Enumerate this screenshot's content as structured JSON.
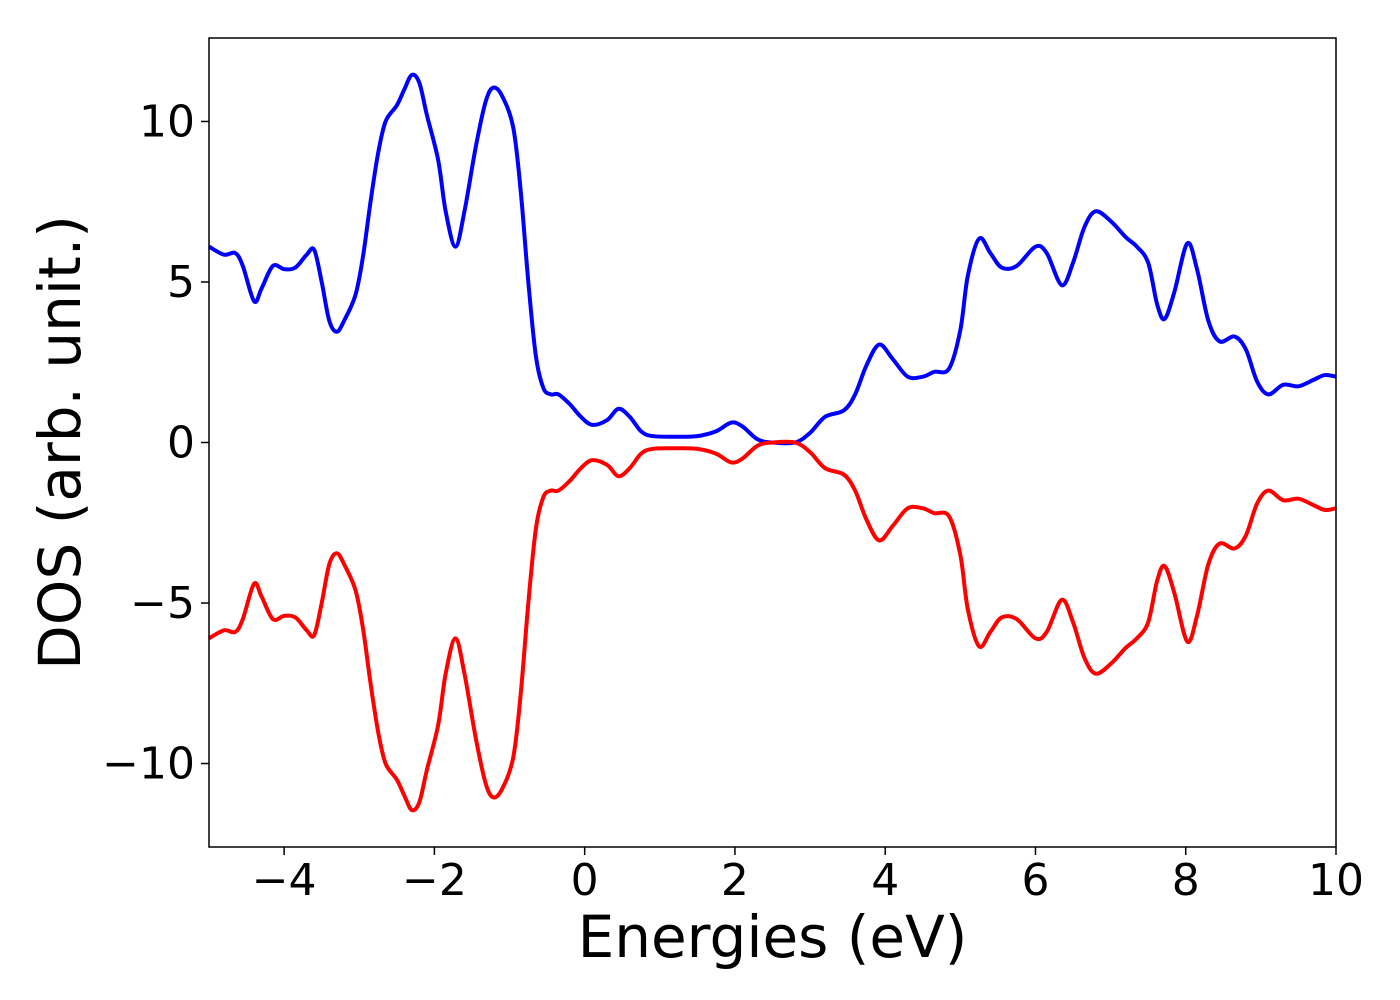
{
  "chart_data": {
    "type": "line",
    "title": "",
    "xlabel": "Energies (eV)",
    "ylabel": "DOS (arb. unit.)",
    "xlim": [
      -5,
      10
    ],
    "ylim": [
      -12.6,
      12.6
    ],
    "grid": false,
    "x_ticks": [
      -4,
      -2,
      0,
      2,
      4,
      6,
      8,
      10
    ],
    "x_tick_labels": [
      "−4",
      "−2",
      "0",
      "2",
      "4",
      "6",
      "8",
      "10"
    ],
    "y_ticks": [
      -10,
      -5,
      0,
      5,
      10
    ],
    "y_tick_labels": [
      "−10",
      "−5",
      "0",
      "5",
      "10"
    ],
    "series": [
      {
        "color": "#0000ff",
        "points": [
          [
            -5.0,
            6.1
          ],
          [
            -4.8,
            5.85
          ],
          [
            -4.65,
            5.9
          ],
          [
            -4.55,
            5.5
          ],
          [
            -4.4,
            4.4
          ],
          [
            -4.3,
            4.8
          ],
          [
            -4.15,
            5.5
          ],
          [
            -4.0,
            5.4
          ],
          [
            -3.85,
            5.45
          ],
          [
            -3.7,
            5.85
          ],
          [
            -3.6,
            6.0
          ],
          [
            -3.5,
            5.0
          ],
          [
            -3.4,
            3.8
          ],
          [
            -3.3,
            3.45
          ],
          [
            -3.2,
            3.8
          ],
          [
            -3.05,
            4.6
          ],
          [
            -2.95,
            5.8
          ],
          [
            -2.85,
            7.5
          ],
          [
            -2.75,
            9.0
          ],
          [
            -2.65,
            10.0
          ],
          [
            -2.5,
            10.5
          ],
          [
            -2.4,
            11.0
          ],
          [
            -2.3,
            11.45
          ],
          [
            -2.2,
            11.2
          ],
          [
            -2.1,
            10.2
          ],
          [
            -1.95,
            8.8
          ],
          [
            -1.85,
            7.2
          ],
          [
            -1.72,
            6.1
          ],
          [
            -1.6,
            7.2
          ],
          [
            -1.45,
            9.2
          ],
          [
            -1.32,
            10.6
          ],
          [
            -1.22,
            11.05
          ],
          [
            -1.1,
            10.8
          ],
          [
            -0.95,
            9.8
          ],
          [
            -0.85,
            7.8
          ],
          [
            -0.75,
            5.0
          ],
          [
            -0.65,
            2.7
          ],
          [
            -0.55,
            1.7
          ],
          [
            -0.45,
            1.5
          ],
          [
            -0.35,
            1.5
          ],
          [
            -0.2,
            1.2
          ],
          [
            -0.05,
            0.8
          ],
          [
            0.1,
            0.55
          ],
          [
            0.3,
            0.7
          ],
          [
            0.45,
            1.05
          ],
          [
            0.6,
            0.8
          ],
          [
            0.75,
            0.35
          ],
          [
            0.9,
            0.2
          ],
          [
            1.2,
            0.18
          ],
          [
            1.5,
            0.2
          ],
          [
            1.75,
            0.35
          ],
          [
            1.95,
            0.62
          ],
          [
            2.1,
            0.5
          ],
          [
            2.3,
            0.1
          ],
          [
            2.5,
            0.0
          ],
          [
            2.8,
            0.0
          ],
          [
            3.0,
            0.3
          ],
          [
            3.2,
            0.8
          ],
          [
            3.45,
            1.0
          ],
          [
            3.6,
            1.5
          ],
          [
            3.75,
            2.4
          ],
          [
            3.92,
            3.05
          ],
          [
            4.1,
            2.6
          ],
          [
            4.3,
            2.05
          ],
          [
            4.5,
            2.05
          ],
          [
            4.65,
            2.2
          ],
          [
            4.85,
            2.3
          ],
          [
            5.0,
            3.5
          ],
          [
            5.1,
            5.2
          ],
          [
            5.25,
            6.35
          ],
          [
            5.4,
            5.9
          ],
          [
            5.55,
            5.45
          ],
          [
            5.75,
            5.5
          ],
          [
            6.0,
            6.1
          ],
          [
            6.15,
            5.9
          ],
          [
            6.35,
            4.9
          ],
          [
            6.5,
            5.6
          ],
          [
            6.65,
            6.7
          ],
          [
            6.8,
            7.2
          ],
          [
            7.0,
            6.9
          ],
          [
            7.2,
            6.4
          ],
          [
            7.35,
            6.1
          ],
          [
            7.5,
            5.6
          ],
          [
            7.62,
            4.3
          ],
          [
            7.72,
            3.85
          ],
          [
            7.85,
            4.7
          ],
          [
            8.02,
            6.2
          ],
          [
            8.15,
            5.4
          ],
          [
            8.3,
            3.8
          ],
          [
            8.45,
            3.15
          ],
          [
            8.65,
            3.3
          ],
          [
            8.8,
            2.9
          ],
          [
            8.95,
            1.9
          ],
          [
            9.1,
            1.5
          ],
          [
            9.3,
            1.8
          ],
          [
            9.5,
            1.75
          ],
          [
            9.7,
            1.95
          ],
          [
            9.85,
            2.1
          ],
          [
            10.0,
            2.05
          ]
        ]
      },
      {
        "color": "#ff0000",
        "points": [
          [
            -5.0,
            -6.1
          ],
          [
            -4.8,
            -5.85
          ],
          [
            -4.65,
            -5.9
          ],
          [
            -4.55,
            -5.5
          ],
          [
            -4.4,
            -4.4
          ],
          [
            -4.3,
            -4.8
          ],
          [
            -4.15,
            -5.5
          ],
          [
            -4.0,
            -5.4
          ],
          [
            -3.85,
            -5.45
          ],
          [
            -3.7,
            -5.85
          ],
          [
            -3.6,
            -6.0
          ],
          [
            -3.5,
            -5.0
          ],
          [
            -3.4,
            -3.8
          ],
          [
            -3.3,
            -3.45
          ],
          [
            -3.2,
            -3.8
          ],
          [
            -3.05,
            -4.6
          ],
          [
            -2.95,
            -5.8
          ],
          [
            -2.85,
            -7.5
          ],
          [
            -2.75,
            -9.0
          ],
          [
            -2.65,
            -10.0
          ],
          [
            -2.5,
            -10.5
          ],
          [
            -2.4,
            -11.0
          ],
          [
            -2.3,
            -11.45
          ],
          [
            -2.2,
            -11.2
          ],
          [
            -2.1,
            -10.2
          ],
          [
            -1.95,
            -8.8
          ],
          [
            -1.85,
            -7.2
          ],
          [
            -1.72,
            -6.1
          ],
          [
            -1.6,
            -7.2
          ],
          [
            -1.45,
            -9.2
          ],
          [
            -1.32,
            -10.6
          ],
          [
            -1.22,
            -11.05
          ],
          [
            -1.1,
            -10.8
          ],
          [
            -0.95,
            -9.8
          ],
          [
            -0.85,
            -7.8
          ],
          [
            -0.75,
            -5.0
          ],
          [
            -0.65,
            -2.7
          ],
          [
            -0.55,
            -1.7
          ],
          [
            -0.45,
            -1.5
          ],
          [
            -0.35,
            -1.5
          ],
          [
            -0.2,
            -1.2
          ],
          [
            -0.05,
            -0.8
          ],
          [
            0.1,
            -0.55
          ],
          [
            0.3,
            -0.7
          ],
          [
            0.45,
            -1.05
          ],
          [
            0.6,
            -0.8
          ],
          [
            0.75,
            -0.35
          ],
          [
            0.9,
            -0.2
          ],
          [
            1.2,
            -0.18
          ],
          [
            1.5,
            -0.2
          ],
          [
            1.75,
            -0.35
          ],
          [
            1.95,
            -0.62
          ],
          [
            2.1,
            -0.5
          ],
          [
            2.3,
            -0.1
          ],
          [
            2.5,
            0.0
          ],
          [
            2.8,
            0.0
          ],
          [
            3.0,
            -0.3
          ],
          [
            3.2,
            -0.8
          ],
          [
            3.45,
            -1.0
          ],
          [
            3.6,
            -1.5
          ],
          [
            3.75,
            -2.4
          ],
          [
            3.92,
            -3.05
          ],
          [
            4.1,
            -2.6
          ],
          [
            4.3,
            -2.05
          ],
          [
            4.5,
            -2.05
          ],
          [
            4.65,
            -2.2
          ],
          [
            4.85,
            -2.3
          ],
          [
            5.0,
            -3.5
          ],
          [
            5.1,
            -5.2
          ],
          [
            5.25,
            -6.35
          ],
          [
            5.4,
            -5.9
          ],
          [
            5.55,
            -5.45
          ],
          [
            5.75,
            -5.5
          ],
          [
            6.0,
            -6.1
          ],
          [
            6.15,
            -5.9
          ],
          [
            6.35,
            -4.9
          ],
          [
            6.5,
            -5.6
          ],
          [
            6.65,
            -6.7
          ],
          [
            6.8,
            -7.2
          ],
          [
            7.0,
            -6.9
          ],
          [
            7.2,
            -6.4
          ],
          [
            7.35,
            -6.1
          ],
          [
            7.5,
            -5.6
          ],
          [
            7.62,
            -4.3
          ],
          [
            7.72,
            -3.85
          ],
          [
            7.85,
            -4.7
          ],
          [
            8.02,
            -6.2
          ],
          [
            8.15,
            -5.4
          ],
          [
            8.3,
            -3.8
          ],
          [
            8.45,
            -3.15
          ],
          [
            8.65,
            -3.3
          ],
          [
            8.8,
            -2.9
          ],
          [
            8.95,
            -1.9
          ],
          [
            9.1,
            -1.5
          ],
          [
            9.3,
            -1.8
          ],
          [
            9.5,
            -1.75
          ],
          [
            9.7,
            -1.95
          ],
          [
            9.85,
            -2.1
          ],
          [
            10.0,
            -2.05
          ]
        ]
      }
    ]
  }
}
